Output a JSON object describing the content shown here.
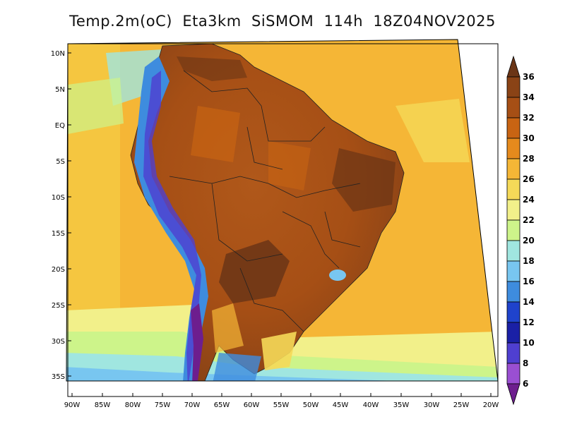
{
  "title": "Temp.2m(oC)  Eta3km  SiSMOM  114h  18Z04NOV2025",
  "lat_labels": [
    "10N",
    "5N",
    "EQ",
    "5S",
    "10S",
    "15S",
    "20S",
    "25S",
    "30S",
    "35S"
  ],
  "lon_labels": [
    "90W",
    "85W",
    "80W",
    "75W",
    "70W",
    "65W",
    "60W",
    "55W",
    "50W",
    "45W",
    "40W",
    "35W",
    "30W",
    "25W",
    "20W"
  ],
  "colorbar": {
    "labels": [
      "36",
      "34",
      "32",
      "30",
      "28",
      "26",
      "24",
      "22",
      "20",
      "18",
      "16",
      "14",
      "12",
      "10",
      "8",
      "6"
    ],
    "colors": [
      "#6b3516",
      "#8a4316",
      "#a64f15",
      "#c86413",
      "#e58a1d",
      "#f5b636",
      "#f5d958",
      "#f2f08a",
      "#cdf48a",
      "#a0e6e0",
      "#78c6f0",
      "#3e8cde",
      "#1f43cc",
      "#1a20a6",
      "#4f3fd0",
      "#9a4fd2",
      "#6d1e8e"
    ]
  },
  "legend_colors": {
    "outside": "#ffffff",
    "land_outline": "#000000"
  }
}
